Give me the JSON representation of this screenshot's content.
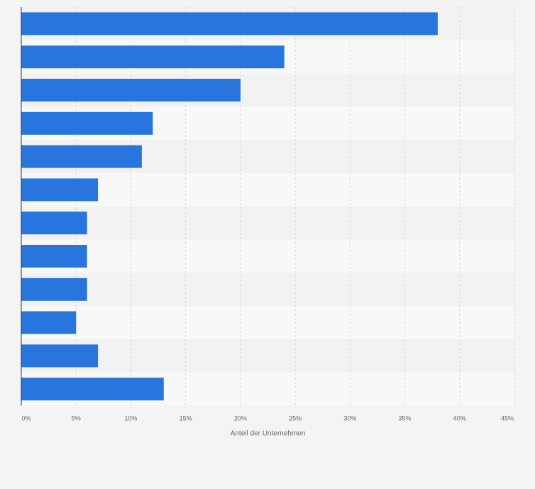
{
  "chart_data": {
    "type": "bar",
    "orientation": "horizontal",
    "title": "",
    "xlabel": "Anteil der Unternehmen",
    "ylabel": "",
    "categories": [
      "",
      "",
      "",
      "",
      "",
      "",
      "",
      "",
      "",
      "",
      "",
      ""
    ],
    "values": [
      38,
      24,
      20,
      12,
      11,
      7,
      6,
      6,
      6,
      5,
      7,
      13
    ],
    "xlim": [
      0,
      45
    ],
    "ticks": [
      0,
      5,
      10,
      15,
      20,
      25,
      30,
      35,
      40,
      45
    ],
    "tick_labels": [
      "0%",
      "5%",
      "10%",
      "15%",
      "20%",
      "25%",
      "30%",
      "35%",
      "40%",
      "45%"
    ],
    "grid": true,
    "legend": "none",
    "colors": {
      "bar": "#2876dd",
      "band_light": "#f8f8f8",
      "band_dark": "#f2f2f2",
      "grid": "#d7d7d7",
      "axis": "#333333",
      "tick_text": "#666666",
      "label_text": "#666666"
    }
  }
}
